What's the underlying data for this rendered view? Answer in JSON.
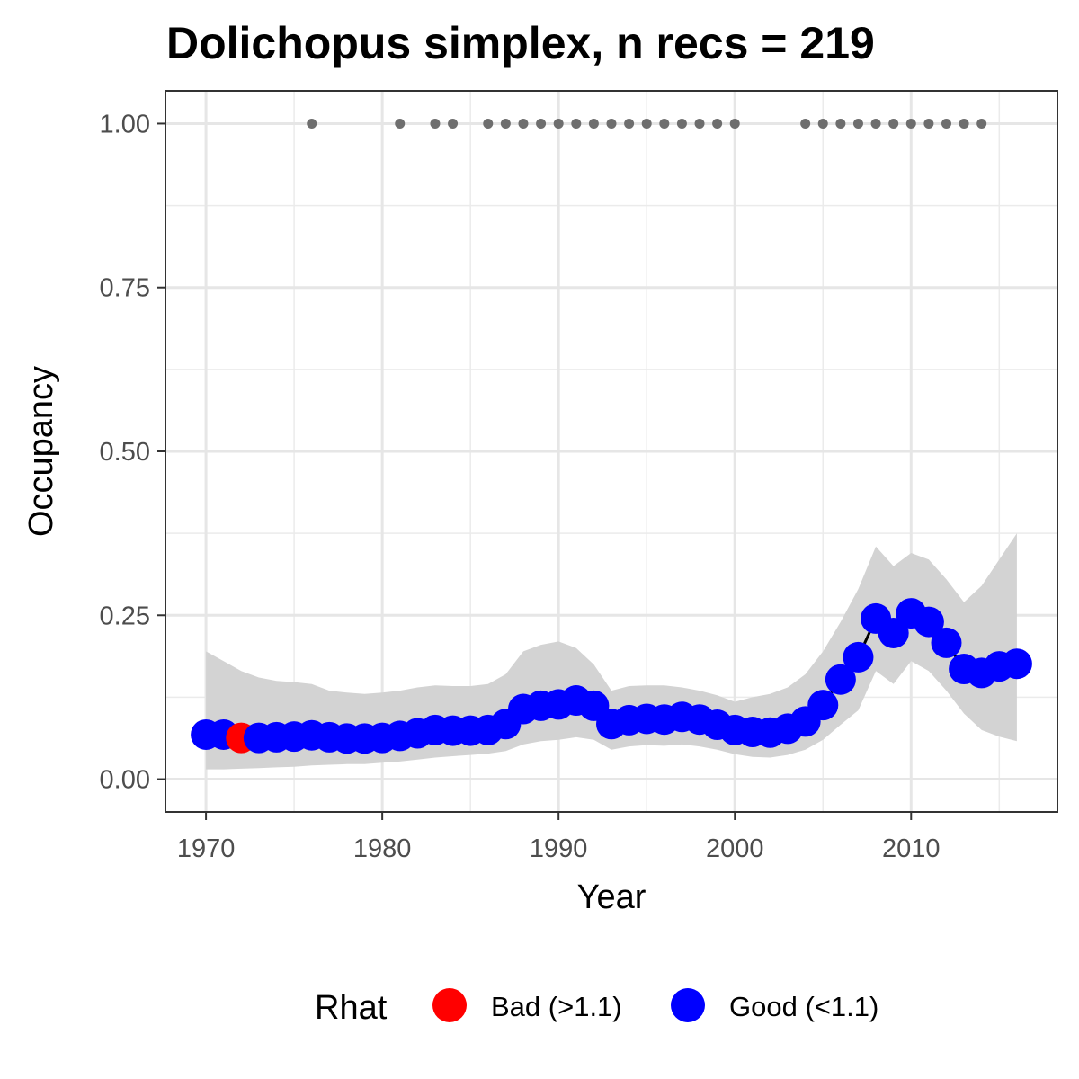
{
  "chart_data": {
    "type": "line",
    "title": "Dolichopus simplex, n recs = 219",
    "xlabel": "Year",
    "ylabel": "Occupancy",
    "xlim": [
      1967.7,
      2018.3
    ],
    "ylim": [
      -0.05,
      1.05
    ],
    "x_ticks": [
      1970,
      1980,
      1990,
      2000,
      2010
    ],
    "x_tick_labels": [
      "1970",
      "1980",
      "1990",
      "2000",
      "2010"
    ],
    "y_ticks": [
      0,
      0.25,
      0.5,
      0.75,
      1.0
    ],
    "y_tick_labels": [
      "0.00",
      "0.25",
      "0.50",
      "0.75",
      "1.00"
    ],
    "grid": true,
    "legend": {
      "title": "Rhat",
      "position": "bottom",
      "items": [
        {
          "key": "bad",
          "label": "Bad (>1.1)",
          "color": "#ff0000"
        },
        {
          "key": "good",
          "label": "Good (<1.1)",
          "color": "#0000ff"
        }
      ]
    },
    "colors": {
      "bad": "#ff0000",
      "good": "#0000ff",
      "ribbon": "#d3d3d3",
      "line": "#000000",
      "records": "#6e6e6e"
    },
    "series": [
      {
        "x": [
          1970,
          1971,
          1972,
          1973,
          1974,
          1975,
          1976,
          1977,
          1978,
          1979,
          1980,
          1981,
          1982,
          1983,
          1984,
          1985,
          1986,
          1987,
          1988,
          1989,
          1990,
          1991,
          1992,
          1993,
          1994,
          1995,
          1996,
          1997,
          1998,
          1999,
          2000,
          2001,
          2002,
          2003,
          2004,
          2005,
          2006,
          2007,
          2008,
          2009,
          2010,
          2011,
          2012,
          2013,
          2014,
          2015,
          2016
        ],
        "mean": [
          0.068,
          0.068,
          0.063,
          0.063,
          0.064,
          0.065,
          0.067,
          0.064,
          0.062,
          0.062,
          0.063,
          0.066,
          0.07,
          0.075,
          0.074,
          0.074,
          0.075,
          0.084,
          0.107,
          0.112,
          0.114,
          0.12,
          0.112,
          0.084,
          0.09,
          0.092,
          0.091,
          0.095,
          0.091,
          0.083,
          0.075,
          0.072,
          0.071,
          0.077,
          0.088,
          0.113,
          0.152,
          0.186,
          0.245,
          0.223,
          0.253,
          0.24,
          0.208,
          0.168,
          0.162,
          0.172,
          0.176
        ],
        "lower": [
          0.015,
          0.015,
          0.016,
          0.017,
          0.018,
          0.019,
          0.021,
          0.022,
          0.023,
          0.023,
          0.025,
          0.027,
          0.03,
          0.033,
          0.035,
          0.037,
          0.039,
          0.043,
          0.053,
          0.058,
          0.06,
          0.064,
          0.06,
          0.045,
          0.05,
          0.052,
          0.051,
          0.053,
          0.05,
          0.045,
          0.038,
          0.034,
          0.033,
          0.037,
          0.045,
          0.06,
          0.083,
          0.105,
          0.165,
          0.145,
          0.18,
          0.165,
          0.135,
          0.1,
          0.075,
          0.065,
          0.058
        ],
        "upper": [
          0.195,
          0.18,
          0.165,
          0.155,
          0.15,
          0.148,
          0.145,
          0.135,
          0.132,
          0.13,
          0.132,
          0.135,
          0.14,
          0.143,
          0.142,
          0.142,
          0.145,
          0.16,
          0.195,
          0.205,
          0.21,
          0.2,
          0.175,
          0.135,
          0.142,
          0.143,
          0.143,
          0.14,
          0.135,
          0.128,
          0.118,
          0.125,
          0.13,
          0.14,
          0.16,
          0.195,
          0.24,
          0.29,
          0.355,
          0.325,
          0.345,
          0.335,
          0.305,
          0.27,
          0.295,
          0.335,
          0.375
        ],
        "rhat": [
          "good",
          "good",
          "bad",
          "good",
          "good",
          "good",
          "good",
          "good",
          "good",
          "good",
          "good",
          "good",
          "good",
          "good",
          "good",
          "good",
          "good",
          "good",
          "good",
          "good",
          "good",
          "good",
          "good",
          "good",
          "good",
          "good",
          "good",
          "good",
          "good",
          "good",
          "good",
          "good",
          "good",
          "good",
          "good",
          "good",
          "good",
          "good",
          "good",
          "good",
          "good",
          "good",
          "good",
          "good",
          "good",
          "good",
          "good"
        ]
      }
    ],
    "records": {
      "y": 1.0,
      "x": [
        1976,
        1981,
        1983,
        1984,
        1986,
        1987,
        1988,
        1989,
        1990,
        1991,
        1992,
        1993,
        1994,
        1995,
        1996,
        1997,
        1998,
        1999,
        2000,
        2004,
        2005,
        2006,
        2007,
        2008,
        2009,
        2010,
        2011,
        2012,
        2013,
        2014
      ]
    }
  }
}
